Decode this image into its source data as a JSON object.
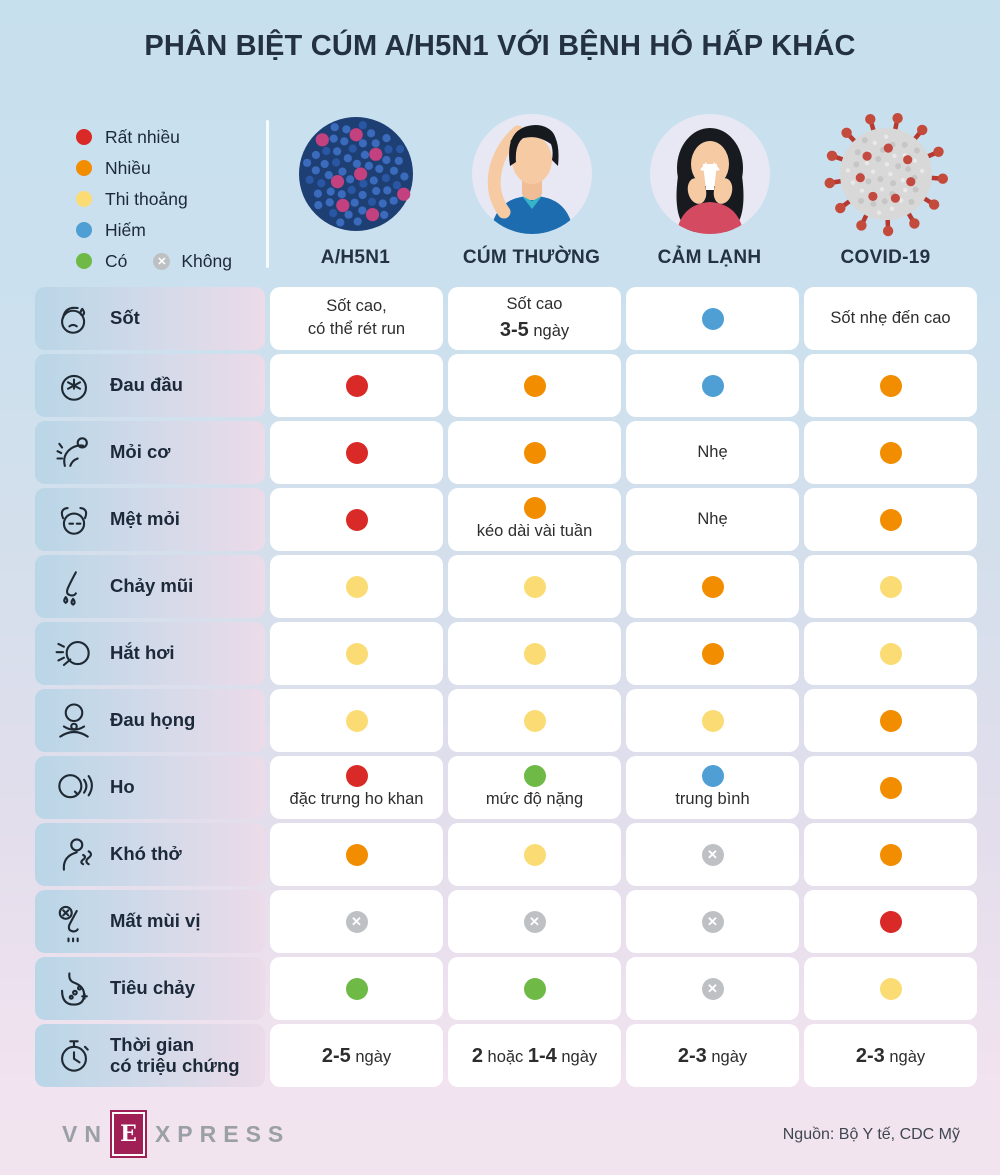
{
  "title": "PHÂN BIỆT CÚM A/H5N1 VỚI BỆNH HÔ HẤP KHÁC",
  "legend": {
    "items": [
      {
        "key": "rat-nhieu",
        "label": "Rất nhiều",
        "color": "#da2a28",
        "shape": "dot"
      },
      {
        "key": "nhieu",
        "label": "Nhiều",
        "color": "#f28d00",
        "shape": "dot"
      },
      {
        "key": "thi-thoang",
        "label": "Thi thoảng",
        "color": "#fbdc74",
        "shape": "dot"
      },
      {
        "key": "hiem",
        "label": "Hiếm",
        "color": "#4f9fd4",
        "shape": "dot"
      },
      {
        "key": "co",
        "label": "Có",
        "color": "#6fb947",
        "shape": "dot"
      },
      {
        "key": "khong",
        "label": "Không",
        "color": "#bec1c4",
        "shape": "x",
        "inline": true
      }
    ]
  },
  "columns": [
    {
      "id": "ah5n1",
      "label": "A/H5N1",
      "image": "h5n1-virus-image"
    },
    {
      "id": "cum-thuong",
      "label": "CÚM THƯỜNG",
      "image": "flu-man-avatar"
    },
    {
      "id": "cam-lanh",
      "label": "CẢM LẠNH",
      "image": "cold-woman-avatar"
    },
    {
      "id": "covid19",
      "label": "COVID-19",
      "image": "covid-virus-image"
    }
  ],
  "rows": [
    {
      "label": "Sốt",
      "icon": "fever-icon",
      "cells": [
        {
          "lines": [
            [
              {
                "t": "Sốt cao,"
              }
            ],
            [
              {
                "t": "có thể rét run"
              }
            ]
          ]
        },
        {
          "lines": [
            [
              {
                "t": "Sốt cao"
              }
            ],
            [
              {
                "t": "3-5",
                "b": true
              },
              {
                "t": " ngày"
              }
            ]
          ]
        },
        {
          "dot": "hiem"
        },
        {
          "lines": [
            [
              {
                "t": "Sốt nhẹ đến cao"
              }
            ]
          ]
        }
      ]
    },
    {
      "label": "Đau đầu",
      "icon": "headache-icon",
      "cells": [
        {
          "dot": "rat-nhieu"
        },
        {
          "dot": "nhieu"
        },
        {
          "dot": "hiem"
        },
        {
          "dot": "nhieu"
        }
      ]
    },
    {
      "label": "Mỏi cơ",
      "icon": "muscle-ache-icon",
      "cells": [
        {
          "dot": "rat-nhieu"
        },
        {
          "dot": "nhieu"
        },
        {
          "lines": [
            [
              {
                "t": "Nhẹ"
              }
            ]
          ]
        },
        {
          "dot": "nhieu"
        }
      ]
    },
    {
      "label": "Mệt mỏi",
      "icon": "fatigue-icon",
      "cells": [
        {
          "dot": "rat-nhieu"
        },
        {
          "dot": "nhieu",
          "lines": [
            [
              {
                "t": "kéo dài vài tuần"
              }
            ]
          ]
        },
        {
          "lines": [
            [
              {
                "t": "Nhẹ"
              }
            ]
          ]
        },
        {
          "dot": "nhieu"
        }
      ]
    },
    {
      "label": "Chảy mũi",
      "icon": "runny-nose-icon",
      "cells": [
        {
          "dot": "thi-thoang"
        },
        {
          "dot": "thi-thoang"
        },
        {
          "dot": "nhieu"
        },
        {
          "dot": "thi-thoang"
        }
      ]
    },
    {
      "label": "Hắt hơi",
      "icon": "sneeze-icon",
      "cells": [
        {
          "dot": "thi-thoang"
        },
        {
          "dot": "thi-thoang"
        },
        {
          "dot": "nhieu"
        },
        {
          "dot": "thi-thoang"
        }
      ]
    },
    {
      "label": "Đau họng",
      "icon": "sore-throat-icon",
      "cells": [
        {
          "dot": "thi-thoang"
        },
        {
          "dot": "thi-thoang"
        },
        {
          "dot": "thi-thoang"
        },
        {
          "dot": "nhieu"
        }
      ]
    },
    {
      "label": "Ho",
      "icon": "cough-icon",
      "cells": [
        {
          "dot": "rat-nhieu",
          "lines": [
            [
              {
                "t": "đặc trưng ho khan"
              }
            ]
          ]
        },
        {
          "dot": "co",
          "lines": [
            [
              {
                "t": "mức độ nặng"
              }
            ]
          ]
        },
        {
          "dot": "hiem",
          "lines": [
            [
              {
                "t": "trung bình"
              }
            ]
          ]
        },
        {
          "dot": "nhieu"
        }
      ]
    },
    {
      "label": "Khó thở",
      "icon": "shortness-of-breath-icon",
      "cells": [
        {
          "dot": "nhieu"
        },
        {
          "dot": "thi-thoang"
        },
        {
          "none": true
        },
        {
          "dot": "nhieu"
        }
      ]
    },
    {
      "label": "Mất mùi vị",
      "icon": "loss-of-smell-icon",
      "cells": [
        {
          "none": true
        },
        {
          "none": true
        },
        {
          "none": true
        },
        {
          "dot": "rat-nhieu"
        }
      ]
    },
    {
      "label": "Tiêu chảy",
      "icon": "diarrhea-icon",
      "cells": [
        {
          "dot": "co"
        },
        {
          "dot": "co"
        },
        {
          "none": true
        },
        {
          "dot": "thi-thoang"
        }
      ]
    },
    {
      "label": "Thời gian\ncó triệu chứng",
      "icon": "duration-icon",
      "cells": [
        {
          "lines": [
            [
              {
                "t": "2-5",
                "b": true
              },
              {
                "t": " ngày"
              }
            ]
          ]
        },
        {
          "lines": [
            [
              {
                "t": "2",
                "b": true
              },
              {
                "t": " hoặc "
              },
              {
                "t": "1-4",
                "b": true
              },
              {
                "t": " ngày"
              }
            ]
          ]
        },
        {
          "lines": [
            [
              {
                "t": "2-3",
                "b": true
              },
              {
                "t": " ngày"
              }
            ]
          ]
        },
        {
          "lines": [
            [
              {
                "t": "2-3",
                "b": true
              },
              {
                "t": " ngày"
              }
            ]
          ]
        }
      ]
    }
  ],
  "footer": {
    "logo": {
      "pre": "VN",
      "e": "E",
      "post": "XPRESS"
    },
    "source": "Nguồn: Bộ Y tế, CDC Mỹ"
  },
  "chart_data": {
    "type": "table",
    "title": "PHÂN BIỆT CÚM A/H5N1 VỚI BỆNH HÔ HẤP KHÁC",
    "legend": [
      "Rất nhiều",
      "Nhiều",
      "Thi thoảng",
      "Hiếm",
      "Có",
      "Không"
    ],
    "columns": [
      "A/H5N1",
      "CÚM THƯỜNG",
      "CẢM LẠNH",
      "COVID-19"
    ],
    "rows": [
      {
        "label": "Sốt",
        "values": [
          "Sốt cao, có thể rét run",
          "Sốt cao 3-5 ngày",
          "Hiếm",
          "Sốt nhẹ đến cao"
        ]
      },
      {
        "label": "Đau đầu",
        "values": [
          "Rất nhiều",
          "Nhiều",
          "Hiếm",
          "Nhiều"
        ]
      },
      {
        "label": "Mỏi cơ",
        "values": [
          "Rất nhiều",
          "Nhiều",
          "Nhẹ",
          "Nhiều"
        ]
      },
      {
        "label": "Mệt mỏi",
        "values": [
          "Rất nhiều",
          "Nhiều, kéo dài vài tuần",
          "Nhẹ",
          "Nhiều"
        ]
      },
      {
        "label": "Chảy mũi",
        "values": [
          "Thi thoảng",
          "Thi thoảng",
          "Nhiều",
          "Thi thoảng"
        ]
      },
      {
        "label": "Hắt hơi",
        "values": [
          "Thi thoảng",
          "Thi thoảng",
          "Nhiều",
          "Thi thoảng"
        ]
      },
      {
        "label": "Đau họng",
        "values": [
          "Thi thoảng",
          "Thi thoảng",
          "Thi thoảng",
          "Nhiều"
        ]
      },
      {
        "label": "Ho",
        "values": [
          "Rất nhiều, đặc trưng ho khan",
          "Có, mức độ nặng",
          "Hiếm, trung bình",
          "Nhiều"
        ]
      },
      {
        "label": "Khó thở",
        "values": [
          "Nhiều",
          "Thi thoảng",
          "Không",
          "Nhiều"
        ]
      },
      {
        "label": "Mất mùi vị",
        "values": [
          "Không",
          "Không",
          "Không",
          "Rất nhiều"
        ]
      },
      {
        "label": "Tiêu chảy",
        "values": [
          "Có",
          "Có",
          "Không",
          "Thi thoảng"
        ]
      },
      {
        "label": "Thời gian có triệu chứng",
        "values": [
          "2-5 ngày",
          "2 hoặc 1-4 ngày",
          "2-3 ngày",
          "2-3 ngày"
        ]
      }
    ]
  }
}
